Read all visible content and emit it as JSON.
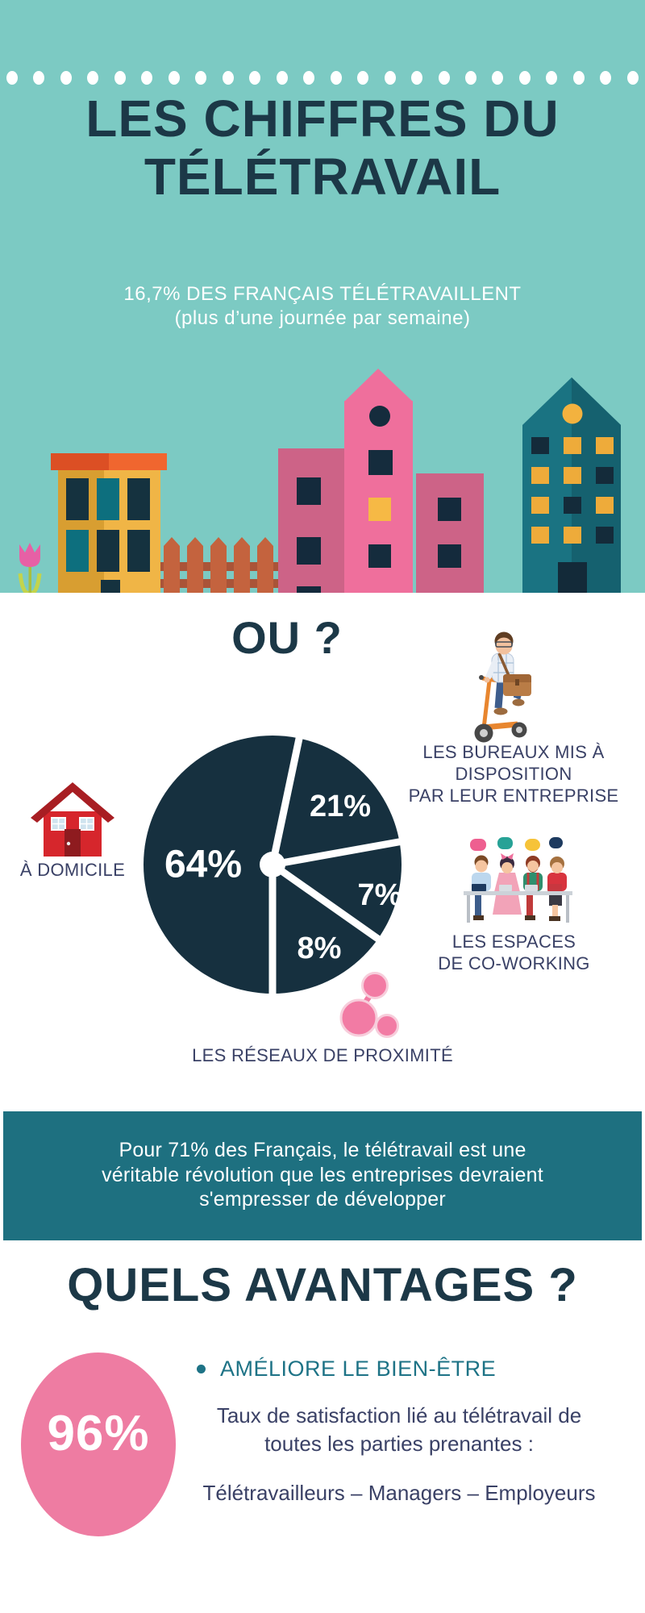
{
  "hero": {
    "dots_count": 24,
    "bg_color": "#7ccac3",
    "title_color": "#1c3847",
    "title_line1": "LES CHIFFRES DU",
    "title_line2": "TÉLÉTRAVAIL",
    "subtitle_line1": "16,7% DES FRANÇAIS TÉLÉTRAVAILLENT",
    "subtitle_line2": "(plus d’une journée par semaine)"
  },
  "where_section": {
    "heading": "OU ?",
    "labels": {
      "home": "À DOMICILE",
      "office_line1": "LES BUREAUX MIS À",
      "office_line2": "DISPOSITION",
      "office_line3": "PAR LEUR ENTREPRISE",
      "coworking_line1": "LES ESPACES",
      "coworking_line2": "DE CO-WORKING",
      "proximity": "LES RÉSEAUX DE PROXIMITÉ"
    }
  },
  "chart_data": {
    "type": "pie",
    "title": "OU ?",
    "slices": [
      {
        "label": "À domicile",
        "value": 64,
        "display": "64%"
      },
      {
        "label": "Les bureaux mis à disposition par leur entreprise",
        "value": 21,
        "display": "21%"
      },
      {
        "label": "Les espaces de co-working",
        "value": 7,
        "display": "7%"
      },
      {
        "label": "Les réseaux de proximité",
        "value": 8,
        "display": "8%"
      }
    ],
    "slice_color": "#16303f",
    "divider_color": "#ffffff",
    "legend_position": "around"
  },
  "banner": {
    "bg_color": "#1e7080",
    "line1": "Pour 71% des Français, le télétravail est une",
    "line2": "véritable révolution que les entreprises devraient",
    "line3": "s'empresser de développer"
  },
  "advantages": {
    "heading": "QUELS AVANTAGES ?",
    "stat_value": "96%",
    "stat_color": "#ee7ca2",
    "bullet_text": "AMÉLIORE LE BIEN-ÊTRE",
    "bullet_color": "#1e7386",
    "detail_line1": "Taux de satisfaction lié au télétravail de",
    "detail_line2": "toutes les parties prenantes :",
    "parties": "Télétravailleurs – Managers – Employeurs"
  }
}
